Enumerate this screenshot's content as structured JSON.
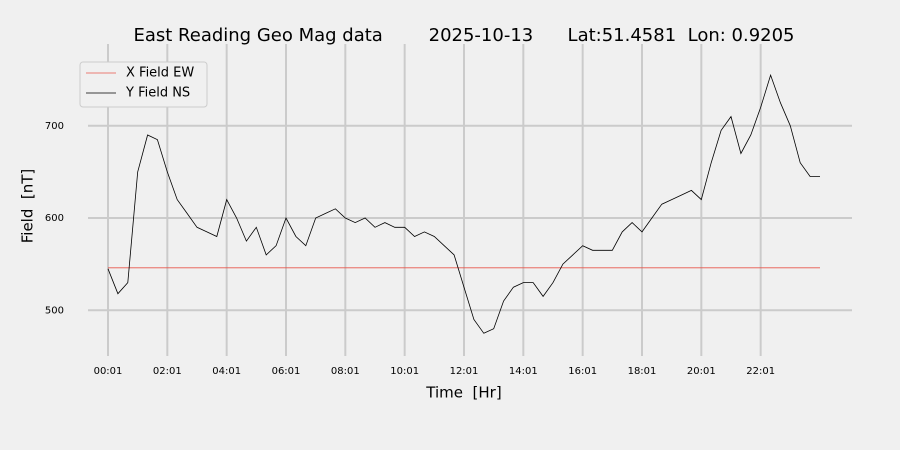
{
  "chart_data": {
    "type": "line",
    "title": "East Reading Geo Mag data        2025-10-13      Lat:51.4581  Lon: 0.9205",
    "x_label": "Time  [Hr]",
    "y_label": "Field  [nT]",
    "x": [
      "00:01",
      "00:21",
      "00:41",
      "01:01",
      "01:21",
      "01:41",
      "02:01",
      "02:21",
      "02:41",
      "03:01",
      "03:21",
      "03:41",
      "04:01",
      "04:21",
      "04:41",
      "05:01",
      "05:21",
      "05:41",
      "06:01",
      "06:21",
      "06:41",
      "07:01",
      "07:21",
      "07:41",
      "08:01",
      "08:21",
      "08:41",
      "09:01",
      "09:21",
      "09:41",
      "10:01",
      "10:21",
      "10:41",
      "11:01",
      "11:21",
      "11:41",
      "12:01",
      "12:21",
      "12:41",
      "13:01",
      "13:21",
      "13:41",
      "14:01",
      "14:21",
      "14:41",
      "15:01",
      "15:21",
      "15:41",
      "16:01",
      "16:21",
      "16:41",
      "17:01",
      "17:21",
      "17:41",
      "18:01",
      "18:21",
      "18:41",
      "19:01",
      "19:21",
      "19:41",
      "20:01",
      "20:21",
      "20:41",
      "21:01",
      "21:21",
      "21:41",
      "22:01",
      "22:21",
      "22:41",
      "23:01",
      "23:21",
      "23:41",
      "24:01"
    ],
    "series": [
      {
        "name": "X Field EW",
        "color": "#e8554a",
        "values": [
          546,
          546,
          546,
          546,
          546,
          546,
          546,
          546,
          546,
          546,
          546,
          546,
          546,
          546,
          546,
          546,
          546,
          546,
          546,
          546,
          546,
          546,
          546,
          546,
          546,
          546,
          546,
          546,
          546,
          546,
          546,
          546,
          546,
          546,
          546,
          546,
          546,
          546,
          546,
          546,
          546,
          546,
          546,
          546,
          546,
          546,
          546,
          546,
          546,
          546,
          546,
          546,
          546,
          546,
          546,
          546,
          546,
          546,
          546,
          546,
          546,
          546,
          546,
          546,
          546,
          546,
          546,
          546,
          546,
          546,
          546,
          546,
          546
        ]
      },
      {
        "name": "Y Field NS",
        "color": "#000000",
        "values": [
          545,
          518,
          530,
          650,
          690,
          685,
          650,
          620,
          605,
          590,
          585,
          580,
          620,
          600,
          575,
          590,
          560,
          570,
          600,
          580,
          570,
          600,
          605,
          610,
          600,
          595,
          600,
          590,
          595,
          590,
          590,
          580,
          585,
          580,
          570,
          560,
          525,
          490,
          475,
          480,
          510,
          525,
          530,
          530,
          515,
          530,
          550,
          560,
          570,
          565,
          565,
          565,
          585,
          595,
          585,
          600,
          615,
          620,
          625,
          630,
          620,
          660,
          695,
          710,
          670,
          690,
          720,
          755,
          725,
          700,
          660,
          645,
          645
        ]
      }
    ],
    "xticks": [
      "00:01",
      "02:01",
      "04:01",
      "06:01",
      "08:01",
      "10:01",
      "12:01",
      "14:01",
      "16:01",
      "18:01",
      "20:01",
      "22:01"
    ],
    "ylim": [
      445,
      780
    ],
    "yticks": [
      500,
      600,
      700
    ],
    "grid": true,
    "legend": "upper left"
  }
}
